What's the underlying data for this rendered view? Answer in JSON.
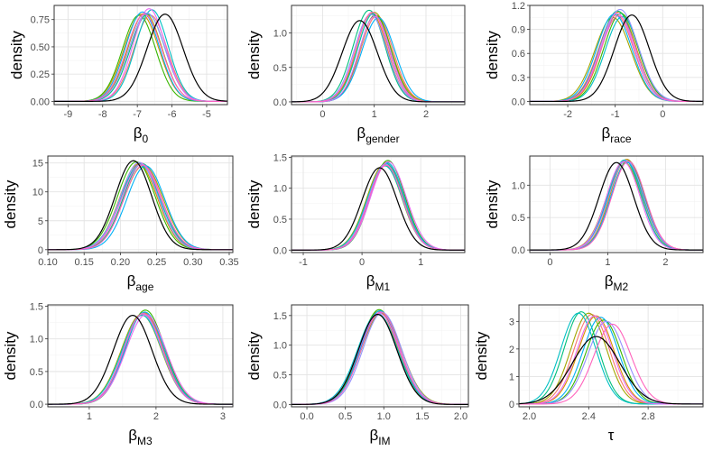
{
  "figure": {
    "type": "density-panel-grid",
    "y_label": "density"
  },
  "colors": {
    "panel_border": "#333333",
    "grid_major": "#e3e3e3",
    "grid_minor": "#f3f3f3",
    "chain_palette": [
      "#F8766D",
      "#D89000",
      "#A3A500",
      "#39B600",
      "#00BF7D",
      "#00BFC4",
      "#00B0F6",
      "#9590FF",
      "#E76BF3",
      "#FF62BC"
    ],
    "reference": "#000000"
  },
  "chart_data": [
    {
      "type": "density",
      "name": "beta0",
      "label_main": "β",
      "label_sub": "0",
      "xlim": [
        -9.4,
        -4.4
      ],
      "ylim": [
        -0.03,
        0.88
      ],
      "xticks": [
        -9,
        -8,
        -7,
        -6,
        -5
      ],
      "xtick_labels": [
        "-9",
        "-8",
        "-7",
        "-6",
        "-5"
      ],
      "yticks": [
        0,
        0.25,
        0.5,
        0.75
      ],
      "ytick_labels": [
        "0.00",
        "0.25",
        "0.50",
        "0.75"
      ],
      "chains": {
        "means": [
          -6.62,
          -6.88,
          -6.78,
          -6.95,
          -6.7,
          -6.58,
          -6.85,
          -6.72,
          -6.66,
          -6.8
        ],
        "sds": [
          0.48,
          0.5,
          0.49,
          0.48,
          0.5,
          0.47,
          0.49,
          0.51,
          0.47,
          0.5
        ],
        "peaks": [
          0.79,
          0.8,
          0.81,
          0.79,
          0.8,
          0.84,
          0.82,
          0.81,
          0.85,
          0.8
        ]
      },
      "reference": {
        "mean": -6.2,
        "sd": 0.52,
        "peak": 0.8
      }
    },
    {
      "type": "density",
      "name": "beta-gender",
      "label_main": "β",
      "label_sub": "gender",
      "xlim": [
        -0.6,
        2.75
      ],
      "ylim": [
        -0.04,
        1.4
      ],
      "xticks": [
        0,
        1,
        2
      ],
      "xtick_labels": [
        "0",
        "1",
        "2"
      ],
      "yticks": [
        0,
        0.5,
        1.0
      ],
      "ytick_labels": [
        "0.0",
        "0.5",
        "1.0"
      ],
      "chains": {
        "means": [
          1.05,
          0.95,
          1.0,
          1.02,
          0.9,
          0.98,
          1.08,
          0.93,
          1.01,
          0.96
        ],
        "sds": [
          0.31,
          0.3,
          0.32,
          0.3,
          0.31,
          0.3,
          0.32,
          0.31,
          0.3,
          0.31
        ],
        "peaks": [
          1.25,
          1.28,
          1.3,
          1.26,
          1.33,
          1.28,
          1.22,
          1.27,
          1.24,
          1.3
        ]
      },
      "reference": {
        "mean": 0.72,
        "sd": 0.34,
        "peak": 1.18
      }
    },
    {
      "type": "density",
      "name": "beta-race",
      "label_main": "β",
      "label_sub": "race",
      "xlim": [
        -2.8,
        0.85
      ],
      "ylim": [
        -0.04,
        1.2
      ],
      "xticks": [
        -2,
        -1,
        0
      ],
      "xtick_labels": [
        "-2",
        "-1",
        "0"
      ],
      "yticks": [
        0,
        0.3,
        0.6,
        0.9,
        1.2
      ],
      "ytick_labels": [
        "0.0",
        "0.3",
        "0.6",
        "0.9",
        "1.2"
      ],
      "chains": {
        "means": [
          -0.98,
          -0.92,
          -1.05,
          -0.88,
          -0.95,
          -0.85,
          -1.02,
          -0.9,
          -0.96,
          -0.93
        ],
        "sds": [
          0.37,
          0.36,
          0.38,
          0.36,
          0.37,
          0.36,
          0.37,
          0.38,
          0.36,
          0.37
        ],
        "peaks": [
          1.08,
          1.12,
          1.05,
          1.1,
          1.13,
          1.06,
          1.09,
          1.15,
          1.1,
          1.07
        ]
      },
      "reference": {
        "mean": -0.65,
        "sd": 0.37,
        "peak": 1.08
      }
    },
    {
      "type": "density",
      "name": "beta-age",
      "label_main": "β",
      "label_sub": "age",
      "xlim": [
        0.1,
        0.355
      ],
      "ylim": [
        -0.5,
        16.2
      ],
      "xticks": [
        0.1,
        0.15,
        0.2,
        0.25,
        0.3,
        0.35
      ],
      "xtick_labels": [
        "0.10",
        "0.15",
        "0.20",
        "0.25",
        "0.30",
        "0.35"
      ],
      "yticks": [
        0,
        5,
        10,
        15
      ],
      "ytick_labels": [
        "0",
        "5",
        "10",
        "15"
      ],
      "chains": {
        "means": [
          0.228,
          0.225,
          0.232,
          0.222,
          0.23,
          0.227,
          0.235,
          0.226,
          0.229,
          0.231
        ],
        "sds": [
          0.026,
          0.026,
          0.027,
          0.026,
          0.026,
          0.027,
          0.026,
          0.026,
          0.027,
          0.026
        ],
        "peaks": [
          15.0,
          14.8,
          14.6,
          15.2,
          14.9,
          14.7,
          14.5,
          15.1,
          14.8,
          14.6
        ]
      },
      "reference": {
        "mean": 0.218,
        "sd": 0.025,
        "peak": 15.4
      }
    },
    {
      "type": "density",
      "name": "beta-m1",
      "label_main": "β",
      "label_sub": "M1",
      "xlim": [
        -1.2,
        1.75
      ],
      "ylim": [
        -0.04,
        1.52
      ],
      "xticks": [
        -1,
        0,
        1
      ],
      "xtick_labels": [
        "-1",
        "0",
        "1"
      ],
      "yticks": [
        0,
        0.5,
        1.0,
        1.5
      ],
      "ytick_labels": [
        "0.0",
        "0.5",
        "1.0",
        "1.5"
      ],
      "chains": {
        "means": [
          0.4,
          0.42,
          0.38,
          0.44,
          0.41,
          0.39,
          0.43,
          0.4,
          0.45,
          0.41
        ],
        "sds": [
          0.29,
          0.29,
          0.3,
          0.29,
          0.29,
          0.3,
          0.29,
          0.29,
          0.3,
          0.29
        ],
        "peaks": [
          1.4,
          1.42,
          1.38,
          1.45,
          1.4,
          1.36,
          1.41,
          1.39,
          1.43,
          1.37
        ]
      },
      "reference": {
        "mean": 0.3,
        "sd": 0.3,
        "peak": 1.33
      }
    },
    {
      "type": "density",
      "name": "beta-m2",
      "label_main": "β",
      "label_sub": "M2",
      "xlim": [
        -0.35,
        2.65
      ],
      "ylim": [
        -0.04,
        1.45
      ],
      "xticks": [
        0,
        1,
        2
      ],
      "xtick_labels": [
        "0",
        "1",
        "2"
      ],
      "yticks": [
        0,
        0.5,
        1.0
      ],
      "ytick_labels": [
        "0.0",
        "0.5",
        "1.0"
      ],
      "chains": {
        "means": [
          1.3,
          1.33,
          1.28,
          1.35,
          1.31,
          1.29,
          1.34,
          1.32,
          1.27,
          1.36
        ],
        "sds": [
          0.29,
          0.29,
          0.3,
          0.29,
          0.3,
          0.29,
          0.29,
          0.3,
          0.29,
          0.29
        ],
        "peaks": [
          1.38,
          1.4,
          1.36,
          1.38,
          1.37,
          1.39,
          1.35,
          1.38,
          1.36,
          1.37
        ]
      },
      "reference": {
        "mean": 1.15,
        "sd": 0.3,
        "peak": 1.35
      }
    },
    {
      "type": "density",
      "name": "beta-m3",
      "label_main": "β",
      "label_sub": "M3",
      "xlim": [
        0.38,
        3.15
      ],
      "ylim": [
        -0.04,
        1.52
      ],
      "xticks": [
        1,
        2,
        3
      ],
      "xtick_labels": [
        "1",
        "2",
        "3"
      ],
      "yticks": [
        0,
        0.5,
        1.0,
        1.5
      ],
      "ytick_labels": [
        "0.0",
        "0.5",
        "1.0",
        "1.5"
      ],
      "chains": {
        "means": [
          1.8,
          1.82,
          1.78,
          1.84,
          1.81,
          1.79,
          1.83,
          1.8,
          1.85,
          1.81
        ],
        "sds": [
          0.29,
          0.29,
          0.3,
          0.29,
          0.29,
          0.3,
          0.29,
          0.29,
          0.3,
          0.29
        ],
        "peaks": [
          1.38,
          1.4,
          1.37,
          1.44,
          1.39,
          1.36,
          1.41,
          1.38,
          1.37,
          1.39
        ]
      },
      "reference": {
        "mean": 1.65,
        "sd": 0.29,
        "peak": 1.36
      }
    },
    {
      "type": "density",
      "name": "beta-im",
      "label_main": "β",
      "label_sub": "IM",
      "xlim": [
        -0.2,
        2.1
      ],
      "ylim": [
        -0.04,
        1.68
      ],
      "xticks": [
        0,
        0.5,
        1.0,
        1.5,
        2.0
      ],
      "xtick_labels": [
        "0.0",
        "0.5",
        "1.0",
        "1.5",
        "2.0"
      ],
      "yticks": [
        0,
        0.5,
        1.0,
        1.5
      ],
      "ytick_labels": [
        "0.0",
        "0.5",
        "1.0",
        "1.5"
      ],
      "chains": {
        "means": [
          0.95,
          0.93,
          0.97,
          0.94,
          0.96,
          0.92,
          0.95,
          0.98,
          0.94,
          0.96
        ],
        "sds": [
          0.25,
          0.25,
          0.26,
          0.25,
          0.25,
          0.26,
          0.25,
          0.25,
          0.26,
          0.25
        ],
        "peaks": [
          1.55,
          1.57,
          1.54,
          1.6,
          1.56,
          1.53,
          1.58,
          1.55,
          1.54,
          1.56
        ]
      },
      "reference": {
        "mean": 0.92,
        "sd": 0.25,
        "peak": 1.52
      }
    },
    {
      "type": "density",
      "name": "tau",
      "label_main": "τ",
      "label_sub": "",
      "xlim": [
        1.93,
        3.17
      ],
      "ylim": [
        -0.1,
        3.6
      ],
      "xticks": [
        2.0,
        2.4,
        2.8
      ],
      "xtick_labels": [
        "2.0",
        "2.4",
        "2.8"
      ],
      "yticks": [
        0,
        1,
        2,
        3
      ],
      "ytick_labels": [
        "0",
        "1",
        "2",
        "3"
      ],
      "chains": {
        "means": [
          2.42,
          2.45,
          2.4,
          2.5,
          2.35,
          2.33,
          2.48,
          2.52,
          2.44,
          2.56
        ],
        "sds": [
          0.12,
          0.12,
          0.12,
          0.12,
          0.115,
          0.118,
          0.12,
          0.125,
          0.12,
          0.125
        ],
        "peaks": [
          3.25,
          3.2,
          3.3,
          3.05,
          3.35,
          3.3,
          3.15,
          3.0,
          3.2,
          2.9
        ]
      },
      "reference": {
        "mean": 2.45,
        "sd": 0.16,
        "peak": 2.45
      }
    }
  ]
}
